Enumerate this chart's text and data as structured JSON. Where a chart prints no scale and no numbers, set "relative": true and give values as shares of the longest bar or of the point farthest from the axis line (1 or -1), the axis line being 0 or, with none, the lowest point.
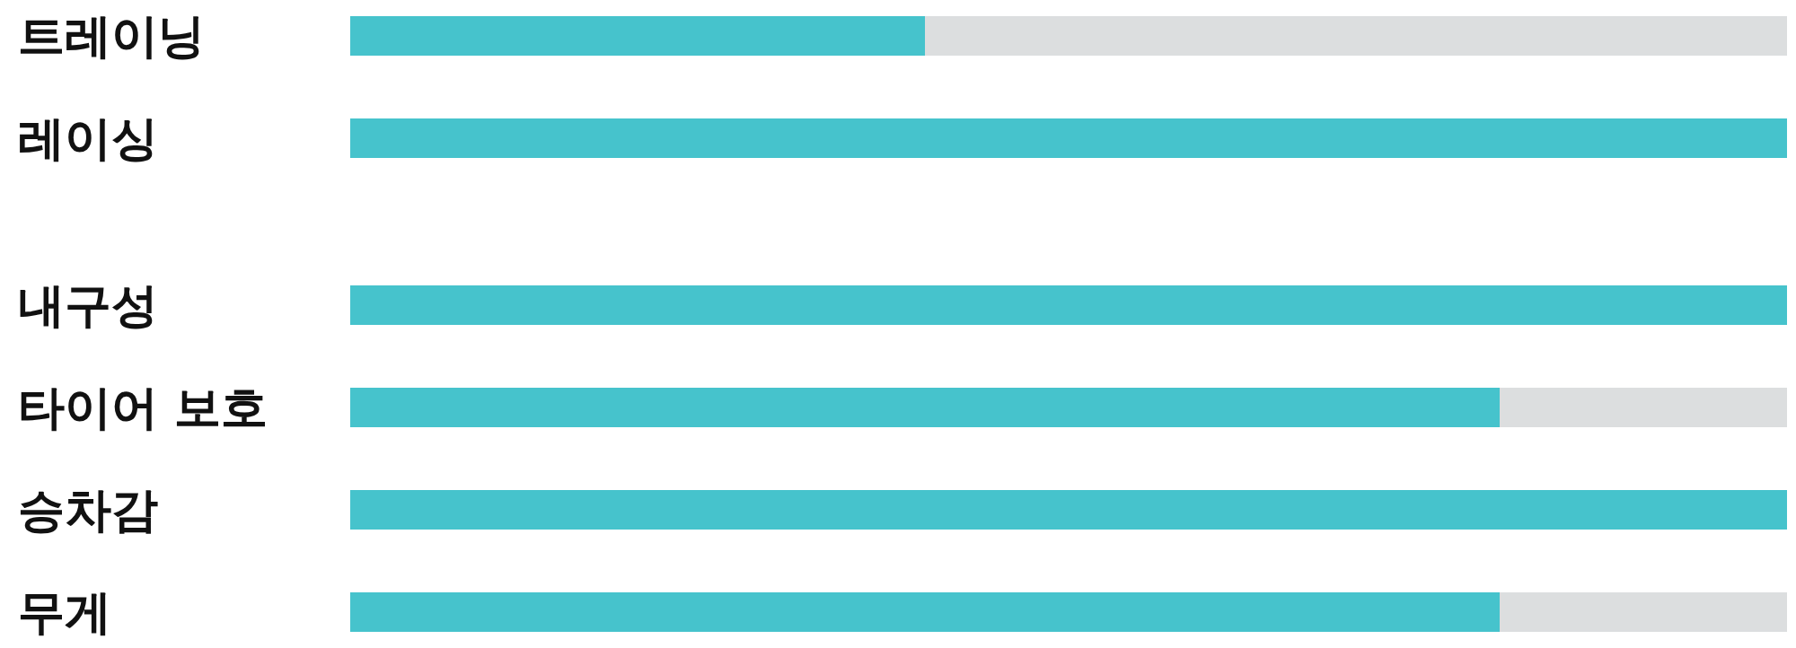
{
  "chart_data": [
    {
      "type": "bar",
      "orientation": "horizontal",
      "relative": true,
      "categories": [
        "트레이닝",
        "레이싱"
      ],
      "values": [
        0.4,
        1
      ],
      "color": "#46c3cc"
    },
    {
      "type": "bar",
      "orientation": "horizontal",
      "relative": true,
      "categories": [
        "내구성",
        "타이어 보호",
        "승차감",
        "무게"
      ],
      "values": [
        1,
        0.8,
        1,
        0.8
      ],
      "color": "#46c3cc"
    }
  ]
}
